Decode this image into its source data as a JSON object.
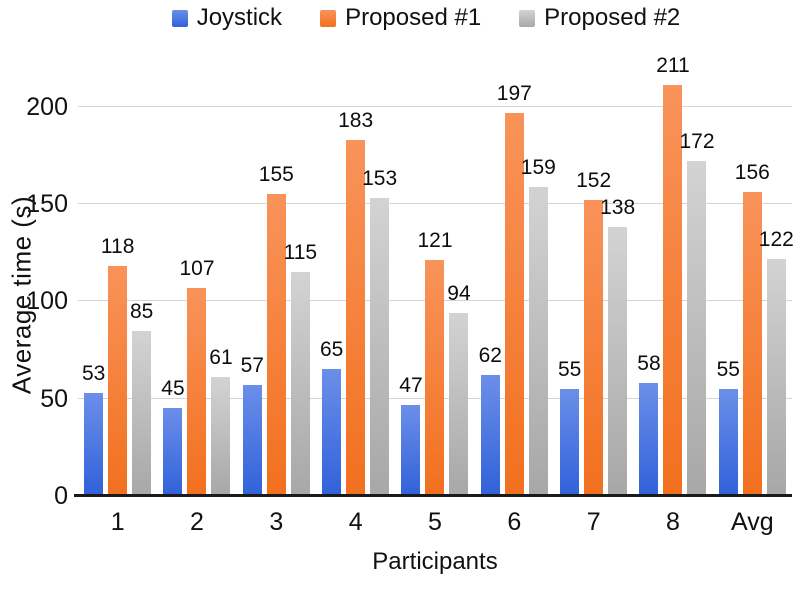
{
  "chart_data": {
    "type": "bar",
    "title": "",
    "xlabel": "Participants",
    "ylabel": "Average time (s)",
    "categories": [
      "1",
      "2",
      "3",
      "4",
      "5",
      "6",
      "7",
      "8",
      "Avg"
    ],
    "series": [
      {
        "name": "Joystick",
        "values": [
          53,
          45,
          57,
          65,
          47,
          62,
          55,
          58,
          55
        ],
        "color": "#4a7be4",
        "color_top": "#6b8fe9",
        "color_bottom": "#3161da"
      },
      {
        "name": "Proposed #1",
        "values": [
          118,
          107,
          155,
          183,
          121,
          197,
          152,
          211,
          156
        ],
        "color": "#f58138",
        "color_top": "#f9935a",
        "color_bottom": "#f2701e"
      },
      {
        "name": "Proposed #2",
        "values": [
          85,
          61,
          115,
          153,
          94,
          159,
          138,
          172,
          122
        ],
        "color": "#bfbfbf",
        "color_top": "#d3d3d3",
        "color_bottom": "#a7a7a7"
      }
    ],
    "yticks": [
      0,
      50,
      100,
      150,
      200
    ],
    "ylim": [
      0,
      224
    ],
    "grid": true,
    "legend_position": "top",
    "data_labels": true
  }
}
